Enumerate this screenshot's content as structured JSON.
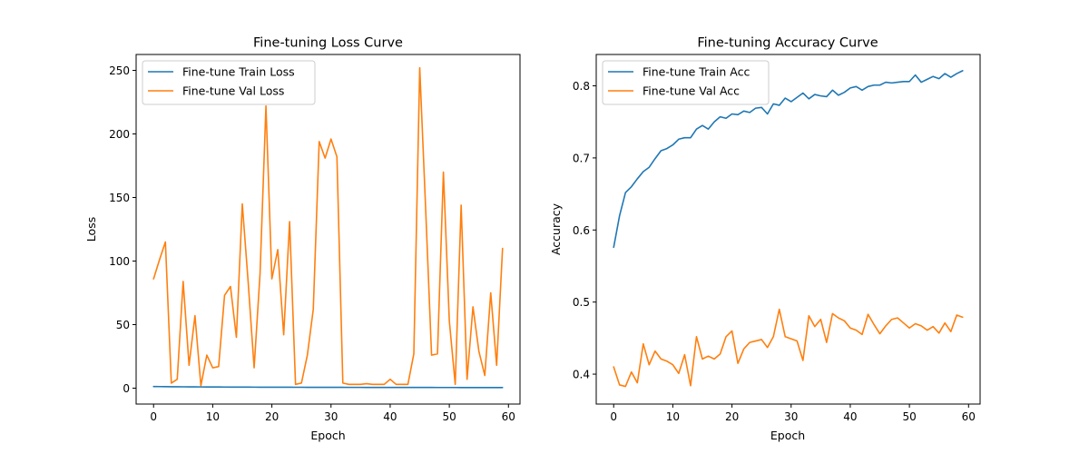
{
  "chart_data": [
    {
      "type": "line",
      "title": "Fine-tuning Loss Curve",
      "xlabel": "Epoch",
      "ylabel": "Loss",
      "xlim": [
        -2.95,
        61.95
      ],
      "ylim": [
        -12.5,
        262.5
      ],
      "xticks": [
        0,
        10,
        20,
        30,
        40,
        50,
        60
      ],
      "yticks": [
        0,
        50,
        100,
        150,
        200,
        250
      ],
      "grid": false,
      "legend": "top-left",
      "series": [
        {
          "name": "Fine-tune Train Loss",
          "color": "#1f77b4",
          "values": [
            1.3,
            1.25,
            1.2,
            1.15,
            1.1,
            1.07,
            1.04,
            1.01,
            0.98,
            0.95,
            0.93,
            0.91,
            0.89,
            0.87,
            0.85,
            0.83,
            0.82,
            0.8,
            0.79,
            0.78,
            0.76,
            0.75,
            0.74,
            0.73,
            0.72,
            0.71,
            0.7,
            0.69,
            0.68,
            0.67,
            0.66,
            0.65,
            0.64,
            0.63,
            0.63,
            0.62,
            0.61,
            0.6,
            0.6,
            0.59,
            0.58,
            0.58,
            0.57,
            0.57,
            0.56,
            0.56,
            0.55,
            0.55,
            0.54,
            0.54,
            0.53,
            0.53,
            0.52,
            0.52,
            0.52,
            0.51,
            0.51,
            0.5,
            0.5,
            0.49
          ]
        },
        {
          "name": "Fine-tune Val Loss",
          "color": "#ff7f0e",
          "values": [
            86,
            101,
            115,
            4,
            7,
            84,
            18,
            57,
            2,
            26,
            16,
            17,
            73,
            80,
            40,
            145,
            83,
            16,
            90,
            222,
            86,
            109,
            42,
            131,
            3,
            4,
            26,
            62,
            194,
            181,
            196,
            182,
            4,
            3,
            3,
            3,
            3.5,
            3,
            3,
            3,
            7,
            3,
            3,
            3,
            27,
            252,
            141,
            26,
            27,
            170,
            53,
            3,
            144,
            7,
            64,
            29,
            10,
            75,
            18,
            110
          ]
        }
      ]
    },
    {
      "type": "line",
      "title": "Fine-tuning Accuracy Curve",
      "xlabel": "Epoch",
      "ylabel": "Accuracy",
      "xlim": [
        -2.95,
        61.95
      ],
      "ylim": [
        0.3585,
        0.8435
      ],
      "xticks": [
        0,
        10,
        20,
        30,
        40,
        50,
        60
      ],
      "yticks": [
        0.4,
        0.5,
        0.6,
        0.7,
        0.8
      ],
      "grid": false,
      "legend": "top-left",
      "series": [
        {
          "name": "Fine-tune Train Acc",
          "color": "#1f77b4",
          "values": [
            0.576,
            0.62,
            0.652,
            0.66,
            0.671,
            0.681,
            0.687,
            0.699,
            0.71,
            0.713,
            0.718,
            0.726,
            0.728,
            0.728,
            0.74,
            0.745,
            0.74,
            0.75,
            0.757,
            0.755,
            0.761,
            0.76,
            0.765,
            0.763,
            0.769,
            0.77,
            0.761,
            0.775,
            0.773,
            0.783,
            0.778,
            0.784,
            0.79,
            0.782,
            0.788,
            0.786,
            0.785,
            0.794,
            0.787,
            0.791,
            0.797,
            0.799,
            0.794,
            0.799,
            0.801,
            0.801,
            0.805,
            0.804,
            0.805,
            0.806,
            0.806,
            0.815,
            0.805,
            0.809,
            0.813,
            0.81,
            0.817,
            0.812,
            0.817,
            0.821
          ]
        },
        {
          "name": "Fine-tune Val Acc",
          "color": "#ff7f0e",
          "values": [
            0.41,
            0.385,
            0.383,
            0.403,
            0.388,
            0.442,
            0.413,
            0.432,
            0.421,
            0.418,
            0.413,
            0.401,
            0.427,
            0.384,
            0.452,
            0.421,
            0.425,
            0.421,
            0.428,
            0.452,
            0.46,
            0.415,
            0.435,
            0.444,
            0.446,
            0.448,
            0.437,
            0.452,
            0.49,
            0.452,
            0.449,
            0.446,
            0.419,
            0.481,
            0.466,
            0.476,
            0.444,
            0.484,
            0.478,
            0.474,
            0.464,
            0.461,
            0.455,
            0.483,
            0.469,
            0.456,
            0.467,
            0.476,
            0.478,
            0.471,
            0.464,
            0.47,
            0.467,
            0.461,
            0.466,
            0.457,
            0.471,
            0.459,
            0.482,
            0.479
          ]
        }
      ]
    }
  ]
}
